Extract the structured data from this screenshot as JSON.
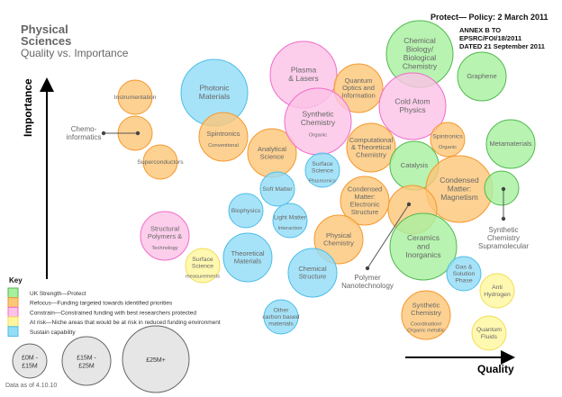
{
  "title": {
    "line1": "Physical",
    "line2": "Sciences",
    "subtitle": "Quality vs. Importance"
  },
  "header": {
    "policy": "Protect— Policy: 2 March 2011",
    "annex": [
      "ANNEX B TO",
      "EPSRC/FOI/18/2011",
      "DATED 21 September 2011"
    ]
  },
  "axes": {
    "y_label": "Importance",
    "x_label": "Quality"
  },
  "colors": {
    "protect": {
      "fill": "#a8f0a0",
      "stroke": "#52b84e"
    },
    "refocus": {
      "fill": "#fdc77a",
      "stroke": "#f4982e"
    },
    "constrain": {
      "fill": "#fbc3e7",
      "stroke": "#f06ccb"
    },
    "at_risk": {
      "fill": "#fff7a0",
      "stroke": "#f0de52"
    },
    "sustain": {
      "fill": "#94ddf6",
      "stroke": "#4cbde8"
    }
  },
  "bubbles": [
    {
      "name": "Instrumentation",
      "category": "refocus",
      "size": "small",
      "lines": [
        "Instrumentation"
      ]
    },
    {
      "name": "Chemo-informatics",
      "category": "refocus",
      "size": "small",
      "lines": [],
      "callout": [
        "Chemo-",
        "informatics"
      ]
    },
    {
      "name": "Superconductors",
      "category": "refocus",
      "size": "small",
      "lines": [
        "Superconductors"
      ]
    },
    {
      "name": "Photonic Materials",
      "category": "sustain",
      "size": "large",
      "lines": [
        "Photonic",
        "Materials"
      ]
    },
    {
      "name": "Spintronics Conventional",
      "category": "refocus",
      "size": "medium",
      "lines": [
        "Spintronics"
      ],
      "sub": [
        "Conventional"
      ]
    },
    {
      "name": "Analytical Science",
      "category": "refocus",
      "size": "medium",
      "lines": [
        "Analytical",
        "Science"
      ]
    },
    {
      "name": "Plasma & Lasers",
      "category": "constrain",
      "size": "large",
      "lines": [
        "Plasma",
        "& Lasers"
      ]
    },
    {
      "name": "Quantum Optics and Information",
      "category": "refocus",
      "size": "medium",
      "lines": [
        "Quantum",
        "Optics and",
        "Information"
      ]
    },
    {
      "name": "Synthetic Chemistry Organic",
      "category": "constrain",
      "size": "large",
      "lines": [
        "Synthetic",
        "Chemistry"
      ],
      "sub": [
        "Organic"
      ]
    },
    {
      "name": "Chemical Biology/Biological Chemistry",
      "category": "protect",
      "size": "large",
      "lines": [
        "Chemical",
        "Biology/",
        "Biological",
        "Chemistry"
      ]
    },
    {
      "name": "Graphene",
      "category": "protect",
      "size": "medium",
      "lines": [
        "Graphene"
      ]
    },
    {
      "name": "Cold Atom Physics",
      "category": "constrain",
      "size": "large",
      "lines": [
        "Cold Atom",
        "Physics"
      ]
    },
    {
      "name": "Spintronics Organic",
      "category": "refocus",
      "size": "small",
      "lines": [
        "Spintronics"
      ],
      "sub": [
        "Organic"
      ]
    },
    {
      "name": "Metamaterials",
      "category": "protect",
      "size": "medium",
      "lines": [
        "Metamaterials"
      ]
    },
    {
      "name": "Computational & Theoretical Chemistry",
      "category": "refocus",
      "size": "medium",
      "lines": [
        "Computational",
        "& Theoretical",
        "Chemistry"
      ]
    },
    {
      "name": "Surface Science Plasmonics",
      "category": "sustain",
      "size": "small",
      "lines": [
        "Surface",
        "Science"
      ],
      "sub": [
        "Plasmonics"
      ]
    },
    {
      "name": "Catalysis",
      "category": "protect",
      "size": "medium",
      "lines": [
        "Catalysis"
      ]
    },
    {
      "name": "Condensed Matter: Magnetism",
      "category": "refocus",
      "size": "large",
      "lines": [
        "Condensed",
        "Matter:",
        "Magnetism"
      ]
    },
    {
      "name": "Synthetic Chemistry Supramolecular",
      "category": "protect",
      "size": "small",
      "lines": [],
      "callout": [
        "Synthetic",
        "Chemistry",
        "Supramolecular"
      ]
    },
    {
      "name": "Soft Matter",
      "category": "sustain",
      "size": "small",
      "lines": [
        "Soft Matter"
      ]
    },
    {
      "name": "Biophysics",
      "category": "sustain",
      "size": "small",
      "lines": [
        "Biophysics"
      ]
    },
    {
      "name": "Light Matter Interaction",
      "category": "sustain",
      "size": "small",
      "lines": [
        "Light Matter"
      ],
      "sub": [
        "Interaction"
      ]
    },
    {
      "name": "Condensed Matter: Electronic Structure",
      "category": "refocus",
      "size": "medium",
      "lines": [
        "Condensed",
        "Matter:",
        "Electronic",
        "Structure"
      ]
    },
    {
      "name": "Polymer Nanotechnology",
      "category": "refocus",
      "size": "medium",
      "lines": [],
      "callout": [
        "Polymer",
        "Nanotechnology"
      ]
    },
    {
      "name": "Physical Chemistry",
      "category": "refocus",
      "size": "medium",
      "lines": [
        "Physical",
        "Chemistry"
      ]
    },
    {
      "name": "Ceramics and Inorganics",
      "category": "protect",
      "size": "large",
      "lines": [
        "Ceramics",
        "and",
        "Inorganics"
      ]
    },
    {
      "name": "Chemical Structure",
      "category": "sustain",
      "size": "medium",
      "lines": [
        "Chemical",
        "Structure"
      ]
    },
    {
      "name": "Gas & Solution Phase",
      "category": "sustain",
      "size": "small",
      "lines": [
        "Gas &",
        "Solution",
        "Phase"
      ]
    },
    {
      "name": "Anti Hydrogen",
      "category": "at_risk",
      "size": "small",
      "lines": [
        "Anti",
        "Hydrogen"
      ]
    },
    {
      "name": "Synthetic Chemistry Coordination/Organic metallic",
      "category": "refocus",
      "size": "medium",
      "lines": [
        "Synthetic",
        "Chemistry"
      ],
      "sub": [
        "Coordination/",
        "Organic metallic"
      ]
    },
    {
      "name": "Quantum Fluids",
      "category": "at_risk",
      "size": "small",
      "lines": [
        "Quantum",
        "Fluids"
      ]
    },
    {
      "name": "Other carbon based materials",
      "category": "sustain",
      "size": "small",
      "lines": [
        "Other",
        "carbon based",
        "materials"
      ]
    },
    {
      "name": "Structural Polymers & Technology",
      "category": "constrain",
      "size": "medium",
      "lines": [
        "Structural",
        "Polymers &"
      ],
      "sub": [
        "Technology"
      ]
    },
    {
      "name": "Surface Science measurements",
      "category": "at_risk",
      "size": "small",
      "lines": [
        "Surface",
        "Science"
      ],
      "sub": [
        "measurements"
      ]
    },
    {
      "name": "Theoretical Materials",
      "category": "sustain",
      "size": "medium",
      "lines": [
        "Theoretical",
        "Materials"
      ]
    }
  ],
  "key": {
    "title": "Key",
    "items": [
      {
        "category": "protect",
        "label": "UK Strength—Protect"
      },
      {
        "category": "refocus",
        "label": "Refocus—Funding targeted towards identified priorities"
      },
      {
        "category": "constrain",
        "label": "Constrain—Constrained funding with best researchers protected"
      },
      {
        "category": "at_risk",
        "label": "At risk—Niche areas that would be at risk in reduced funding environment"
      },
      {
        "category": "sustain",
        "label": "Sustain capability"
      }
    ],
    "sizes": [
      {
        "size": "small",
        "lines": [
          "£0M -",
          "£15M"
        ]
      },
      {
        "size": "medium",
        "lines": [
          "£15M -",
          "£25M"
        ]
      },
      {
        "size": "large",
        "lines": [
          "£25M+"
        ]
      }
    ],
    "footnote": "Data as of 4.10.10"
  }
}
